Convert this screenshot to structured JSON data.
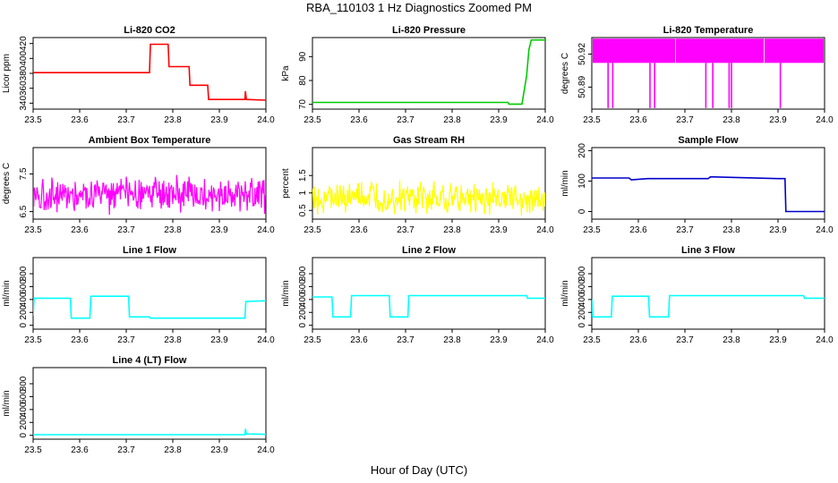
{
  "title": "RBA_110103  1 Hz Diagnostics Zoomed PM",
  "xlabel": "Hour of Day (UTC)",
  "chart_data": [
    {
      "type": "line",
      "title": "Li-820 CO2",
      "ylabel": "Licor ppm",
      "color": "#ff0000",
      "xlim": [
        23.5,
        24.0
      ],
      "ylim": [
        332,
        428
      ],
      "yticks": [
        340,
        360,
        380,
        400,
        420
      ],
      "xticks": [
        23.5,
        23.6,
        23.7,
        23.8,
        23.9,
        24.0
      ],
      "series": [
        {
          "x": [
            23.5,
            23.75,
            23.752,
            23.79,
            23.792,
            23.835,
            23.837,
            23.875,
            23.877,
            23.955,
            23.956,
            23.958,
            24.0
          ],
          "values": [
            381,
            381,
            419,
            419,
            389,
            389,
            364,
            364,
            345,
            345,
            356,
            345,
            344
          ]
        }
      ]
    },
    {
      "type": "line",
      "title": "Li-820 Pressure",
      "ylabel": "kPa",
      "color": "#00cc00",
      "xlim": [
        23.5,
        24.0
      ],
      "ylim": [
        68,
        98
      ],
      "yticks": [
        70,
        80,
        90
      ],
      "xticks": [
        23.5,
        23.6,
        23.7,
        23.8,
        23.9,
        24.0
      ],
      "series": [
        {
          "x": [
            23.5,
            23.92,
            23.922,
            23.95,
            23.96,
            23.965,
            23.97,
            24.0
          ],
          "values": [
            70.8,
            70.8,
            70.1,
            70.1,
            82,
            93,
            97,
            97
          ]
        }
      ]
    },
    {
      "type": "line",
      "title": "Li-820 Temperature",
      "ylabel": "degrees C",
      "color": "#ff00ff",
      "xlim": [
        23.5,
        24.0
      ],
      "ylim": [
        50.87,
        50.935
      ],
      "yticks": [
        50.89,
        50.92
      ],
      "xticks": [
        23.5,
        23.6,
        23.7,
        23.8,
        23.9,
        24.0
      ],
      "band": [
        50.912,
        50.934
      ],
      "spikes": [
        23.535,
        23.545,
        23.625,
        23.635,
        23.745,
        23.76,
        23.795,
        23.8,
        23.905
      ],
      "spike_low": 50.871
    },
    {
      "type": "line",
      "title": "Ambient Box Temperature",
      "ylabel": "degrees C",
      "color": "#ff00ff",
      "xlim": [
        23.5,
        24.0
      ],
      "ylim": [
        6.3,
        8.2
      ],
      "yticks": [
        6.5,
        7.5
      ],
      "xticks": [
        23.5,
        23.6,
        23.7,
        23.8,
        23.9,
        24.0
      ],
      "noise": {
        "mean": 6.95,
        "amp": 0.55
      }
    },
    {
      "type": "line",
      "title": "Gas Stream RH",
      "ylabel": "percent",
      "color": "#ffff00",
      "xlim": [
        23.5,
        24.0
      ],
      "ylim": [
        0.25,
        2.3
      ],
      "yticks": [
        0.5,
        1.0,
        1.5
      ],
      "xticks": [
        23.5,
        23.6,
        23.7,
        23.8,
        23.9,
        24.0
      ],
      "noise": {
        "mean": 0.85,
        "amp": 0.55
      }
    },
    {
      "type": "line",
      "title": "Sample Flow",
      "ylabel": "ml/min",
      "color": "#0000cc",
      "xlim": [
        23.5,
        24.0
      ],
      "ylim": [
        -25,
        210
      ],
      "yticks": [
        0,
        100,
        200
      ],
      "xticks": [
        23.5,
        23.6,
        23.7,
        23.8,
        23.9,
        24.0
      ],
      "series": [
        {
          "x": [
            23.5,
            23.58,
            23.585,
            23.62,
            23.75,
            23.755,
            23.9,
            23.915,
            23.917,
            24.0
          ],
          "values": [
            110,
            110,
            104,
            108,
            108,
            114,
            108,
            108,
            0,
            0
          ]
        }
      ]
    },
    {
      "type": "line",
      "title": "Line 1 Flow",
      "ylabel": "ml/min",
      "color": "#00ffff",
      "xlim": [
        23.5,
        24.0
      ],
      "ylim": [
        -60,
        1050
      ],
      "yticks": [
        0,
        200,
        400,
        600,
        800
      ],
      "xticks": [
        23.5,
        23.6,
        23.7,
        23.8,
        23.9,
        24.0
      ],
      "series": [
        {
          "x": [
            23.5,
            23.502,
            23.58,
            23.582,
            23.622,
            23.624,
            23.705,
            23.707,
            23.75,
            23.752,
            23.955,
            23.957,
            24.0
          ],
          "values": [
            150,
            420,
            420,
            110,
            110,
            450,
            450,
            130,
            130,
            110,
            110,
            370,
            380
          ]
        }
      ]
    },
    {
      "type": "line",
      "title": "Line 2 Flow",
      "ylabel": "ml/min",
      "color": "#00ffff",
      "xlim": [
        23.5,
        24.0
      ],
      "ylim": [
        -60,
        1050
      ],
      "yticks": [
        0,
        200,
        400,
        600,
        800
      ],
      "xticks": [
        23.5,
        23.6,
        23.7,
        23.8,
        23.9,
        24.0
      ],
      "series": [
        {
          "x": [
            23.5,
            23.542,
            23.544,
            23.582,
            23.584,
            23.665,
            23.667,
            23.705,
            23.707,
            23.96,
            23.962,
            24.0
          ],
          "values": [
            440,
            440,
            130,
            130,
            460,
            460,
            130,
            130,
            460,
            460,
            420,
            420
          ]
        }
      ]
    },
    {
      "type": "line",
      "title": "Line 3 Flow",
      "ylabel": "ml/min",
      "color": "#00ffff",
      "xlim": [
        23.5,
        24.0
      ],
      "ylim": [
        -60,
        1050
      ],
      "yticks": [
        0,
        200,
        400,
        600,
        800
      ],
      "xticks": [
        23.5,
        23.6,
        23.7,
        23.8,
        23.9,
        24.0
      ],
      "series": [
        {
          "x": [
            23.5,
            23.502,
            23.542,
            23.544,
            23.622,
            23.624,
            23.665,
            23.667,
            23.955,
            23.957,
            24.0
          ],
          "values": [
            400,
            130,
            130,
            450,
            450,
            130,
            130,
            460,
            460,
            420,
            420
          ]
        }
      ]
    },
    {
      "type": "line",
      "title": "Line 4 (LT) Flow",
      "ylabel": "ml/min",
      "color": "#00ffff",
      "xlim": [
        23.5,
        24.0
      ],
      "ylim": [
        -60,
        1050
      ],
      "yticks": [
        0,
        200,
        400,
        600,
        800
      ],
      "xticks": [
        23.5,
        23.6,
        23.7,
        23.8,
        23.9,
        24.0
      ],
      "series": [
        {
          "x": [
            23.5,
            23.955,
            23.956,
            23.958,
            24.0
          ],
          "values": [
            10,
            10,
            100,
            20,
            15
          ]
        }
      ]
    }
  ]
}
